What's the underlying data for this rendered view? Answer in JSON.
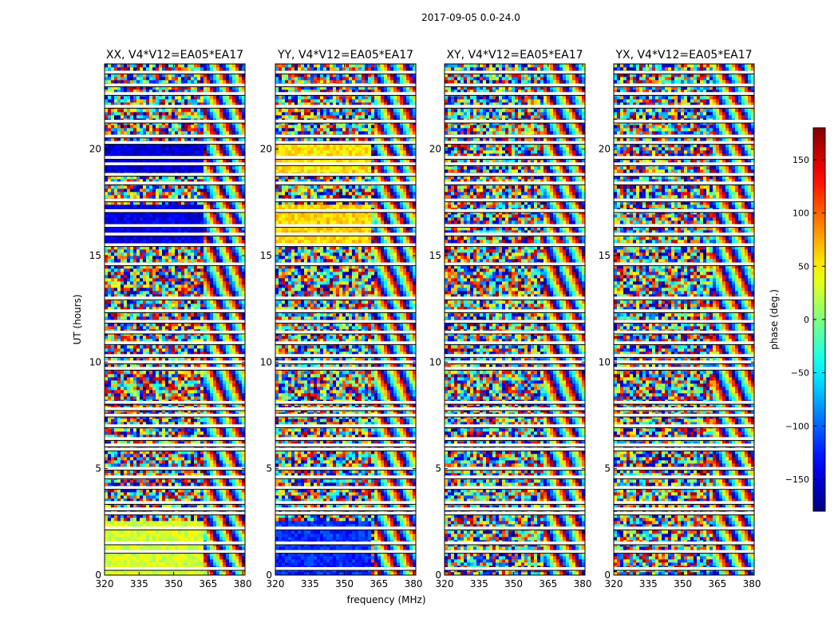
{
  "figure": {
    "suptitle": "2017-09-05 0.0-24.0",
    "xlabel": "frequency (MHz)",
    "ylabel": "UT (hours)"
  },
  "chart_data": [
    {
      "type": "heatmap",
      "title": "XX, V4*V12=EA05*EA17",
      "xlim": [
        320,
        381
      ],
      "ylim": [
        0,
        24
      ],
      "xticks": [
        "320",
        "335",
        "350",
        "365",
        "380"
      ],
      "yticks": [
        "0",
        "5",
        "10",
        "15",
        "20"
      ]
    },
    {
      "type": "heatmap",
      "title": "YY, V4*V12=EA05*EA17",
      "xlim": [
        320,
        381
      ],
      "ylim": [
        0,
        24
      ],
      "xticks": [
        "320",
        "335",
        "350",
        "365",
        "380"
      ],
      "yticks": [
        "0",
        "5",
        "10",
        "15",
        "20"
      ]
    },
    {
      "type": "heatmap",
      "title": "XY, V4*V12=EA05*EA17",
      "xlim": [
        320,
        381
      ],
      "ylim": [
        0,
        24
      ],
      "xticks": [
        "320",
        "335",
        "350",
        "365",
        "380"
      ],
      "yticks": [
        "0",
        "5",
        "10",
        "15",
        "20"
      ]
    },
    {
      "type": "heatmap",
      "title": "YX, V4*V12=EA05*EA17",
      "xlim": [
        320,
        381
      ],
      "ylim": [
        0,
        24
      ],
      "xticks": [
        "320",
        "335",
        "350",
        "365",
        "380"
      ],
      "yticks": [
        "0",
        "5",
        "10",
        "15",
        "20"
      ]
    }
  ],
  "colorbar": {
    "label": "phase (deg.)",
    "range": [
      -180,
      180
    ],
    "ticks": [
      "150",
      "100",
      "50",
      "0",
      "−50",
      "−100",
      "−150"
    ],
    "tick_values": [
      150,
      100,
      50,
      0,
      -50,
      -100,
      -150
    ],
    "colormap": "jet"
  },
  "features": {
    "flagged_hours": [
      0.3,
      1.1,
      1.5,
      2.2,
      2.9,
      3.1,
      3.4,
      4.1,
      4.6,
      5.0,
      5.9,
      6.1,
      6.4,
      7.0,
      7.5,
      7.8,
      8.1,
      9.7,
      10.0,
      10.3,
      10.9,
      11.4,
      11.9,
      12.4,
      13.0,
      14.6,
      15.5,
      16.0,
      16.4,
      17.1,
      17.6,
      18.4,
      18.8,
      19.3,
      19.6,
      20.3,
      20.6,
      21.3,
      22.0,
      22.6,
      23.0,
      23.6
    ],
    "smooth_blocks": [
      {
        "panel": 0,
        "t0": 0.0,
        "t1": 2.6,
        "f1": 363,
        "phase": 30
      },
      {
        "panel": 0,
        "t0": 18.9,
        "t1": 20.2,
        "f1": 363,
        "phase": -150
      },
      {
        "panel": 0,
        "t0": 15.4,
        "t1": 17.4,
        "f1": 363,
        "phase": -145
      },
      {
        "panel": 1,
        "t0": 0.0,
        "t1": 2.6,
        "f1": 361,
        "phase": -120
      },
      {
        "panel": 1,
        "t0": 18.9,
        "t1": 20.2,
        "f1": 361,
        "phase": 55
      },
      {
        "panel": 1,
        "t0": 15.4,
        "t1": 17.4,
        "f1": 361,
        "phase": 60
      }
    ]
  }
}
